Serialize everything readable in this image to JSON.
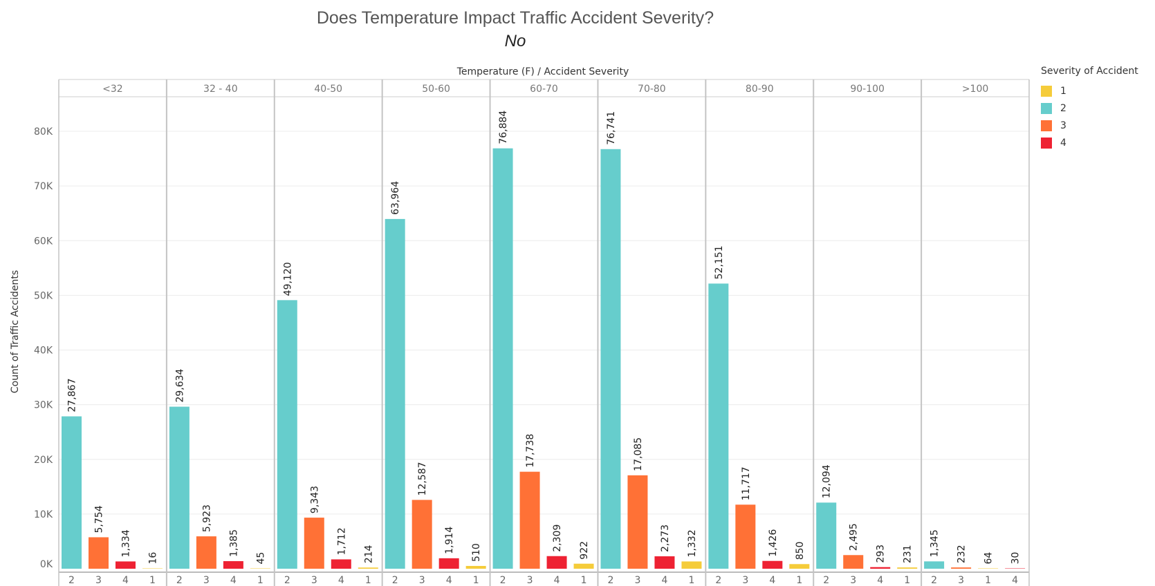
{
  "chart_data": {
    "type": "bar",
    "title": "Does Temperature Impact Traffic Accident Severity?",
    "subtitle": "No",
    "header": "Temperature (F)  /  Accident Severity",
    "ylabel": "Count of Traffic Accidents",
    "ylim": [
      0,
      88000
    ],
    "yticks": [
      {
        "value": 0,
        "label": "0K"
      },
      {
        "value": 10000,
        "label": "10K"
      },
      {
        "value": 20000,
        "label": "20K"
      },
      {
        "value": 30000,
        "label": "30K"
      },
      {
        "value": 40000,
        "label": "40K"
      },
      {
        "value": 50000,
        "label": "50K"
      },
      {
        "value": 60000,
        "label": "60K"
      },
      {
        "value": 70000,
        "label": "70K"
      },
      {
        "value": 80000,
        "label": "80K"
      }
    ],
    "grid": true,
    "legend": {
      "title": "Severity of Accident",
      "position": "right",
      "items": [
        {
          "label": "1",
          "color": "#f5cc3a"
        },
        {
          "label": "2",
          "color": "#66cdcc"
        },
        {
          "label": "3",
          "color": "#ff7136"
        },
        {
          "label": "4",
          "color": "#ee2233"
        }
      ]
    },
    "colors": {
      "1": "#f5cc3a",
      "2": "#66cdcc",
      "3": "#ff7136",
      "4": "#ee2233"
    },
    "groups": [
      {
        "label": "<32",
        "bars": [
          {
            "severity": "2",
            "value": 27867,
            "label": "27,867"
          },
          {
            "severity": "3",
            "value": 5754,
            "label": "5,754"
          },
          {
            "severity": "4",
            "value": 1334,
            "label": "1,334"
          },
          {
            "severity": "1",
            "value": 16,
            "label": "16"
          }
        ]
      },
      {
        "label": "32 - 40",
        "bars": [
          {
            "severity": "2",
            "value": 29634,
            "label": "29,634"
          },
          {
            "severity": "3",
            "value": 5923,
            "label": "5,923"
          },
          {
            "severity": "4",
            "value": 1385,
            "label": "1,385"
          },
          {
            "severity": "1",
            "value": 45,
            "label": "45"
          }
        ]
      },
      {
        "label": "40-50",
        "bars": [
          {
            "severity": "2",
            "value": 49120,
            "label": "49,120"
          },
          {
            "severity": "3",
            "value": 9343,
            "label": "9,343"
          },
          {
            "severity": "4",
            "value": 1712,
            "label": "1,712"
          },
          {
            "severity": "1",
            "value": 214,
            "label": "214"
          }
        ]
      },
      {
        "label": "50-60",
        "bars": [
          {
            "severity": "2",
            "value": 63964,
            "label": "63,964"
          },
          {
            "severity": "3",
            "value": 12587,
            "label": "12,587"
          },
          {
            "severity": "4",
            "value": 1914,
            "label": "1,914"
          },
          {
            "severity": "1",
            "value": 510,
            "label": "510"
          }
        ]
      },
      {
        "label": "60-70",
        "bars": [
          {
            "severity": "2",
            "value": 76884,
            "label": "76,884"
          },
          {
            "severity": "3",
            "value": 17738,
            "label": "17,738"
          },
          {
            "severity": "4",
            "value": 2309,
            "label": "2,309"
          },
          {
            "severity": "1",
            "value": 922,
            "label": "922"
          }
        ]
      },
      {
        "label": "70-80",
        "bars": [
          {
            "severity": "2",
            "value": 76741,
            "label": "76,741"
          },
          {
            "severity": "3",
            "value": 17085,
            "label": "17,085"
          },
          {
            "severity": "4",
            "value": 2273,
            "label": "2,273"
          },
          {
            "severity": "1",
            "value": 1332,
            "label": "1,332"
          }
        ]
      },
      {
        "label": "80-90",
        "bars": [
          {
            "severity": "2",
            "value": 52151,
            "label": "52,151"
          },
          {
            "severity": "3",
            "value": 11717,
            "label": "11,717"
          },
          {
            "severity": "4",
            "value": 1426,
            "label": "1,426"
          },
          {
            "severity": "1",
            "value": 850,
            "label": "850"
          }
        ]
      },
      {
        "label": "90-100",
        "bars": [
          {
            "severity": "2",
            "value": 12094,
            "label": "12,094"
          },
          {
            "severity": "3",
            "value": 2495,
            "label": "2,495"
          },
          {
            "severity": "4",
            "value": 293,
            "label": "293"
          },
          {
            "severity": "1",
            "value": 231,
            "label": "231"
          }
        ]
      },
      {
        "label": ">100",
        "bars": [
          {
            "severity": "2",
            "value": 1345,
            "label": "1,345"
          },
          {
            "severity": "3",
            "value": 232,
            "label": "232"
          },
          {
            "severity": "1",
            "value": 64,
            "label": "64"
          },
          {
            "severity": "4",
            "value": 30,
            "label": "30"
          }
        ]
      }
    ]
  }
}
